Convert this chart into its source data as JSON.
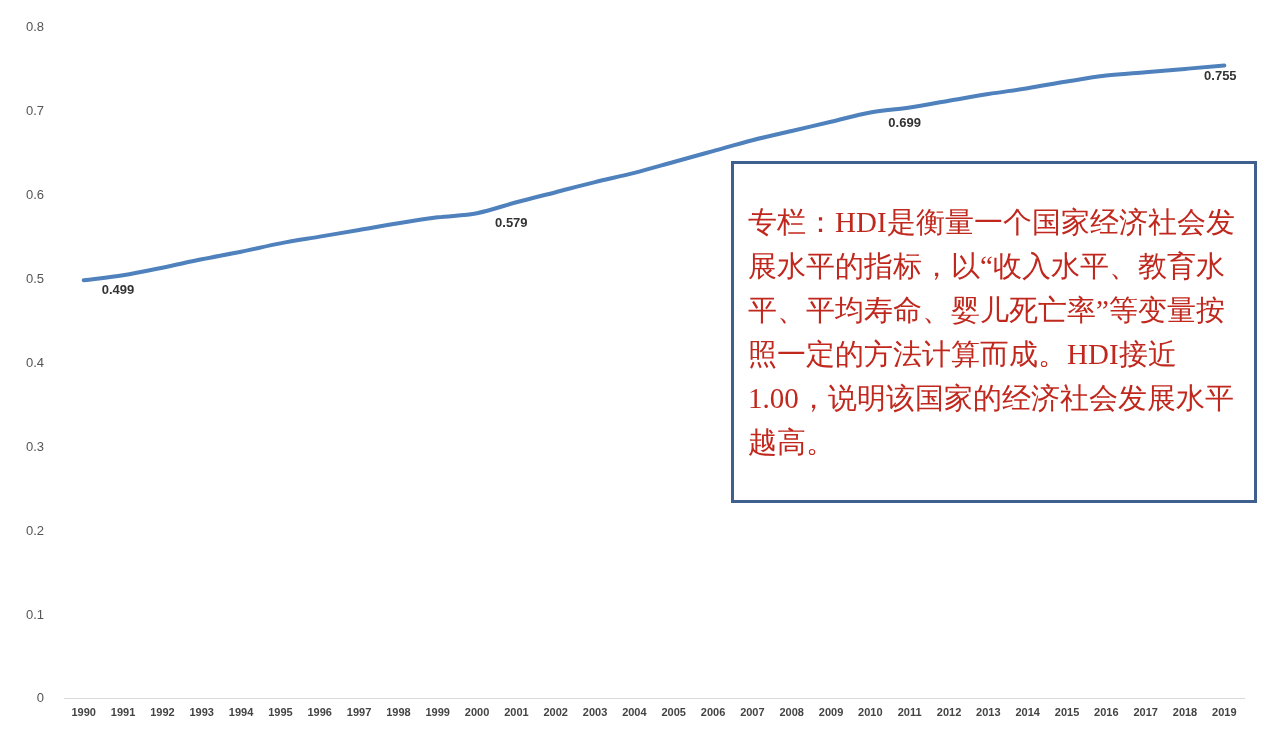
{
  "chart_data": {
    "type": "line",
    "categories": [
      "1990",
      "1991",
      "1992",
      "1993",
      "1994",
      "1995",
      "1996",
      "1997",
      "1998",
      "1999",
      "2000",
      "2001",
      "2002",
      "2003",
      "2004",
      "2005",
      "2006",
      "2007",
      "2008",
      "2009",
      "2010",
      "2011",
      "2012",
      "2013",
      "2014",
      "2015",
      "2016",
      "2017",
      "2018",
      "2019"
    ],
    "series": [
      {
        "color": "#4f81bd",
        "values": [
          0.499,
          0.505,
          0.514,
          0.524,
          0.533,
          0.543,
          0.551,
          0.559,
          0.567,
          0.574,
          0.579,
          0.592,
          0.604,
          0.616,
          0.627,
          0.64,
          0.653,
          0.666,
          0.677,
          0.688,
          0.699,
          0.705,
          0.713,
          0.721,
          0.728,
          0.736,
          0.743,
          0.747,
          0.751,
          0.755
        ],
        "value_labels": [
          "0.499",
          null,
          null,
          null,
          null,
          null,
          null,
          null,
          null,
          null,
          "0.579",
          null,
          null,
          null,
          null,
          null,
          null,
          null,
          null,
          null,
          "0.699",
          null,
          null,
          null,
          null,
          null,
          null,
          null,
          null,
          "0.755"
        ]
      }
    ],
    "ylim": [
      0,
      0.8
    ],
    "yticks": [
      0,
      0.1,
      0.2,
      0.3,
      0.4,
      0.5,
      0.6,
      0.7,
      0.8
    ],
    "grid": false,
    "legend": false,
    "marker": "none",
    "line_style": "solid",
    "annotations": [
      "专栏：HDI是衡量一个国家经济社会发展水平的指标，以“收入水平、教育水平、平均寿命、婴儿死亡率”等变量按照一定的方法计算而成。HDI接近1.00，说明该国家的经济社会发展水平越高。"
    ]
  }
}
